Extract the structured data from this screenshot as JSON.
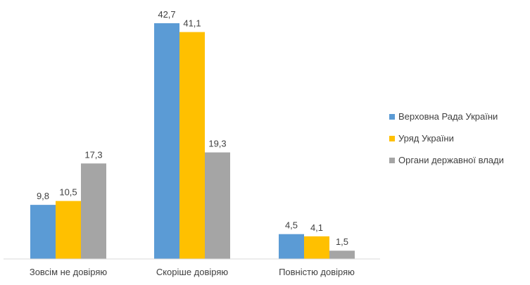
{
  "chart_data": {
    "type": "bar",
    "title": "",
    "xlabel": "",
    "ylabel": "",
    "ylim": [
      0,
      45
    ],
    "grid": false,
    "legend_position": "right",
    "categories": [
      "Зовсім не довіряю",
      "Скоріше довіряю",
      "Повністю довіряю"
    ],
    "series": [
      {
        "name": "Верховна Рада України",
        "color": "#5b9bd5",
        "values": [
          9.8,
          42.7,
          4.5
        ],
        "labels": [
          "9,8",
          "42,7",
          "4,5"
        ]
      },
      {
        "name": "Уряд України",
        "color": "#ffc000",
        "values": [
          10.5,
          41.1,
          4.1
        ],
        "labels": [
          "10,5",
          "41,1",
          "4,1"
        ]
      },
      {
        "name": "Органи державної влади",
        "color": "#a5a5a5",
        "values": [
          17.3,
          19.3,
          1.5
        ],
        "labels": [
          "17,3",
          "19,3",
          "1,5"
        ]
      }
    ]
  }
}
